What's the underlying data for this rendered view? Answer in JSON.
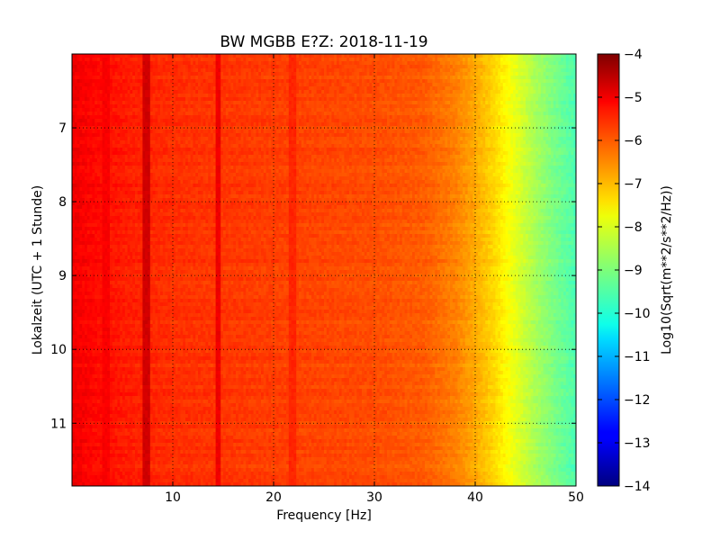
{
  "chart_data": {
    "type": "heatmap",
    "title": "BW MGBB E?Z: 2018-11-19",
    "xlabel": "Frequency [Hz]",
    "ylabel": "Lokalzeit (UTC + 1 Stunde)",
    "colorbar_label": "Log10(Sqrt(m**2/s**2/Hz))",
    "colormap": "jet",
    "xlim": [
      0,
      50
    ],
    "ylim": [
      11.85,
      6.0
    ],
    "y_inverted": true,
    "clim": [
      -14,
      -4
    ],
    "grid": true,
    "x_ticks": [
      10,
      20,
      30,
      40,
      50
    ],
    "x_tick_labels": [
      "10",
      "20",
      "30",
      "40",
      "50"
    ],
    "y_ticks": [
      7,
      8,
      9,
      10,
      11
    ],
    "y_tick_labels": [
      "7",
      "8",
      "9",
      "10",
      "11"
    ],
    "colorbar_ticks": [
      -4,
      -5,
      -6,
      -7,
      -8,
      -9,
      -10,
      -11,
      -12,
      -13,
      -14
    ],
    "colorbar_tick_labels": [
      "−4",
      "−5",
      "−6",
      "−7",
      "−8",
      "−9",
      "−10",
      "−11",
      "−12",
      "−13",
      "−14"
    ],
    "spectrum_profile": {
      "frequency_hz": [
        0,
        2,
        5,
        10,
        20,
        30,
        35,
        38,
        40,
        42,
        44,
        46,
        48,
        50
      ],
      "log10_amplitude": [
        -5.1,
        -5.3,
        -5.5,
        -5.7,
        -5.85,
        -6.0,
        -6.15,
        -6.5,
        -6.9,
        -7.4,
        -8.0,
        -8.6,
        -9.1,
        -9.5
      ]
    },
    "spectral_lines_hz": [
      {
        "frequency": 7.3,
        "log10_amplitude": -4.8
      },
      {
        "frequency": 14.5,
        "log10_amplitude": -5.1
      },
      {
        "frequency": 21.8,
        "log10_amplitude": -5.6
      },
      {
        "frequency": 3.4,
        "log10_amplitude": -5.2
      }
    ]
  }
}
